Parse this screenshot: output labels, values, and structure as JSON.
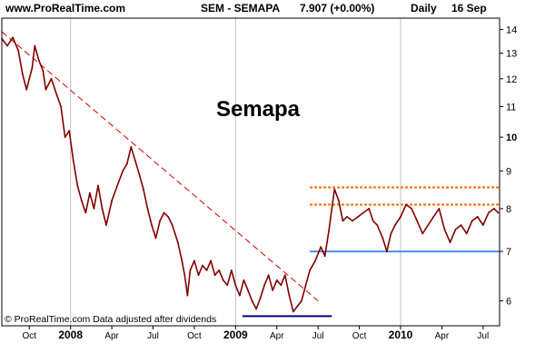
{
  "header": {
    "site": "www.ProRealTime.com",
    "symbol": "SEM - SEMAPA",
    "price": "7.907 (+0.00%)",
    "period": "Daily",
    "date": "16 Sep"
  },
  "chart_data": {
    "type": "line",
    "title": "Semapa",
    "footer": "© ProRealTime.com Data adjusted after dividends",
    "y_scale": "log",
    "ylim": [
      5.55,
      14.5
    ],
    "xlim": [
      0,
      36.2
    ],
    "x_unit": "months since 2007-08-01",
    "y_ticks": [
      {
        "value": 6,
        "label": "6",
        "bold": false
      },
      {
        "value": 7,
        "label": "7",
        "bold": false
      },
      {
        "value": 8,
        "label": "8",
        "bold": false
      },
      {
        "value": 9,
        "label": "9",
        "bold": false
      },
      {
        "value": 10,
        "label": "10",
        "bold": true
      },
      {
        "value": 11,
        "label": "11",
        "bold": false
      },
      {
        "value": 12,
        "label": "12",
        "bold": false
      },
      {
        "value": 13,
        "label": "13",
        "bold": false
      },
      {
        "value": 14,
        "label": "14",
        "bold": false
      }
    ],
    "x_ticks": [
      {
        "t": 2,
        "label": "Oct",
        "bold": false,
        "grid": false
      },
      {
        "t": 5,
        "label": "2008",
        "bold": true,
        "grid": true
      },
      {
        "t": 8,
        "label": "Apr",
        "bold": false,
        "grid": false
      },
      {
        "t": 11,
        "label": "Jul",
        "bold": false,
        "grid": false
      },
      {
        "t": 14,
        "label": "Oct",
        "bold": false,
        "grid": false
      },
      {
        "t": 17,
        "label": "2009",
        "bold": true,
        "grid": true
      },
      {
        "t": 20,
        "label": "Apr",
        "bold": false,
        "grid": false
      },
      {
        "t": 23,
        "label": "Jul",
        "bold": false,
        "grid": false
      },
      {
        "t": 26,
        "label": "Oct",
        "bold": false,
        "grid": false
      },
      {
        "t": 29,
        "label": "2010",
        "bold": true,
        "grid": true
      },
      {
        "t": 32,
        "label": "Apr",
        "bold": false,
        "grid": false
      },
      {
        "t": 35,
        "label": "Jul",
        "bold": false,
        "grid": false
      }
    ],
    "series": [
      {
        "name": "SEMAPA daily close",
        "color": "#800000",
        "points": [
          [
            0.0,
            13.6
          ],
          [
            0.4,
            13.3
          ],
          [
            0.8,
            13.65
          ],
          [
            1.2,
            13.1
          ],
          [
            1.5,
            12.2
          ],
          [
            1.8,
            11.6
          ],
          [
            2.2,
            12.4
          ],
          [
            2.4,
            13.3
          ],
          [
            2.7,
            12.7
          ],
          [
            3.0,
            12.3
          ],
          [
            3.2,
            11.6
          ],
          [
            3.6,
            12.0
          ],
          [
            4.0,
            11.4
          ],
          [
            4.3,
            11.0
          ],
          [
            4.6,
            10.0
          ],
          [
            4.9,
            10.2
          ],
          [
            5.2,
            9.3
          ],
          [
            5.5,
            8.6
          ],
          [
            5.8,
            8.2
          ],
          [
            6.1,
            7.9
          ],
          [
            6.4,
            8.4
          ],
          [
            6.7,
            8.0
          ],
          [
            7.0,
            8.6
          ],
          [
            7.3,
            8.0
          ],
          [
            7.6,
            7.6
          ],
          [
            8.0,
            8.2
          ],
          [
            8.4,
            8.6
          ],
          [
            8.8,
            9.0
          ],
          [
            9.1,
            9.2
          ],
          [
            9.4,
            9.7
          ],
          [
            9.7,
            9.3
          ],
          [
            10.0,
            8.9
          ],
          [
            10.3,
            8.5
          ],
          [
            10.6,
            8.0
          ],
          [
            10.9,
            7.6
          ],
          [
            11.2,
            7.3
          ],
          [
            11.5,
            7.7
          ],
          [
            11.8,
            7.9
          ],
          [
            12.1,
            7.8
          ],
          [
            12.4,
            7.6
          ],
          [
            12.8,
            7.2
          ],
          [
            13.1,
            6.8
          ],
          [
            13.3,
            6.5
          ],
          [
            13.5,
            6.1
          ],
          [
            13.7,
            6.6
          ],
          [
            14.0,
            6.8
          ],
          [
            14.3,
            6.5
          ],
          [
            14.6,
            6.7
          ],
          [
            14.9,
            6.6
          ],
          [
            15.2,
            6.8
          ],
          [
            15.5,
            6.5
          ],
          [
            15.8,
            6.6
          ],
          [
            16.1,
            6.4
          ],
          [
            16.4,
            6.3
          ],
          [
            16.7,
            6.6
          ],
          [
            17.0,
            6.3
          ],
          [
            17.3,
            6.1
          ],
          [
            17.6,
            6.4
          ],
          [
            17.9,
            6.2
          ],
          [
            18.2,
            6.0
          ],
          [
            18.5,
            5.85
          ],
          [
            18.8,
            6.05
          ],
          [
            19.1,
            6.3
          ],
          [
            19.4,
            6.5
          ],
          [
            19.7,
            6.2
          ],
          [
            20.0,
            6.4
          ],
          [
            20.3,
            6.3
          ],
          [
            20.6,
            6.5
          ],
          [
            20.9,
            6.1
          ],
          [
            21.2,
            5.8
          ],
          [
            21.5,
            5.9
          ],
          [
            21.8,
            6.0
          ],
          [
            22.1,
            6.3
          ],
          [
            22.4,
            6.6
          ],
          [
            22.8,
            6.8
          ],
          [
            23.2,
            7.1
          ],
          [
            23.5,
            6.9
          ],
          [
            23.8,
            7.5
          ],
          [
            24.0,
            8.0
          ],
          [
            24.2,
            8.5
          ],
          [
            24.5,
            8.2
          ],
          [
            24.8,
            7.7
          ],
          [
            25.1,
            7.8
          ],
          [
            25.5,
            7.7
          ],
          [
            25.9,
            7.8
          ],
          [
            26.3,
            7.9
          ],
          [
            26.7,
            8.0
          ],
          [
            27.0,
            7.7
          ],
          [
            27.3,
            7.6
          ],
          [
            27.7,
            7.3
          ],
          [
            28.0,
            7.0
          ],
          [
            28.3,
            7.4
          ],
          [
            28.6,
            7.6
          ],
          [
            29.0,
            7.8
          ],
          [
            29.4,
            8.1
          ],
          [
            29.8,
            8.0
          ],
          [
            30.2,
            7.7
          ],
          [
            30.6,
            7.4
          ],
          [
            31.0,
            7.6
          ],
          [
            31.4,
            7.8
          ],
          [
            31.8,
            8.0
          ],
          [
            32.2,
            7.5
          ],
          [
            32.6,
            7.2
          ],
          [
            33.0,
            7.5
          ],
          [
            33.4,
            7.6
          ],
          [
            33.8,
            7.4
          ],
          [
            34.2,
            7.7
          ],
          [
            34.6,
            7.8
          ],
          [
            35.0,
            7.6
          ],
          [
            35.4,
            7.9
          ],
          [
            35.8,
            8.0
          ],
          [
            36.1,
            7.9
          ]
        ]
      }
    ],
    "annotations": [
      {
        "kind": "trendline",
        "style": "dashed",
        "color": "#cc0000",
        "from": [
          0,
          13.9
        ],
        "to": [
          23.0,
          6.0
        ]
      },
      {
        "kind": "support",
        "style": "solid",
        "color": "#000080",
        "from": [
          17.5,
          5.72
        ],
        "to": [
          24.0,
          5.72
        ]
      },
      {
        "kind": "support",
        "style": "solid",
        "color": "#4a90e2",
        "from": [
          22.4,
          7.0
        ],
        "to": [
          36.2,
          7.0
        ]
      },
      {
        "kind": "resistance",
        "style": "dotted",
        "color": "#ff6600",
        "from": [
          22.4,
          8.1
        ],
        "to": [
          36.2,
          8.1
        ]
      },
      {
        "kind": "resistance",
        "style": "dotted",
        "color": "#ff6600",
        "from": [
          22.4,
          8.55
        ],
        "to": [
          36.2,
          8.55
        ]
      }
    ]
  }
}
